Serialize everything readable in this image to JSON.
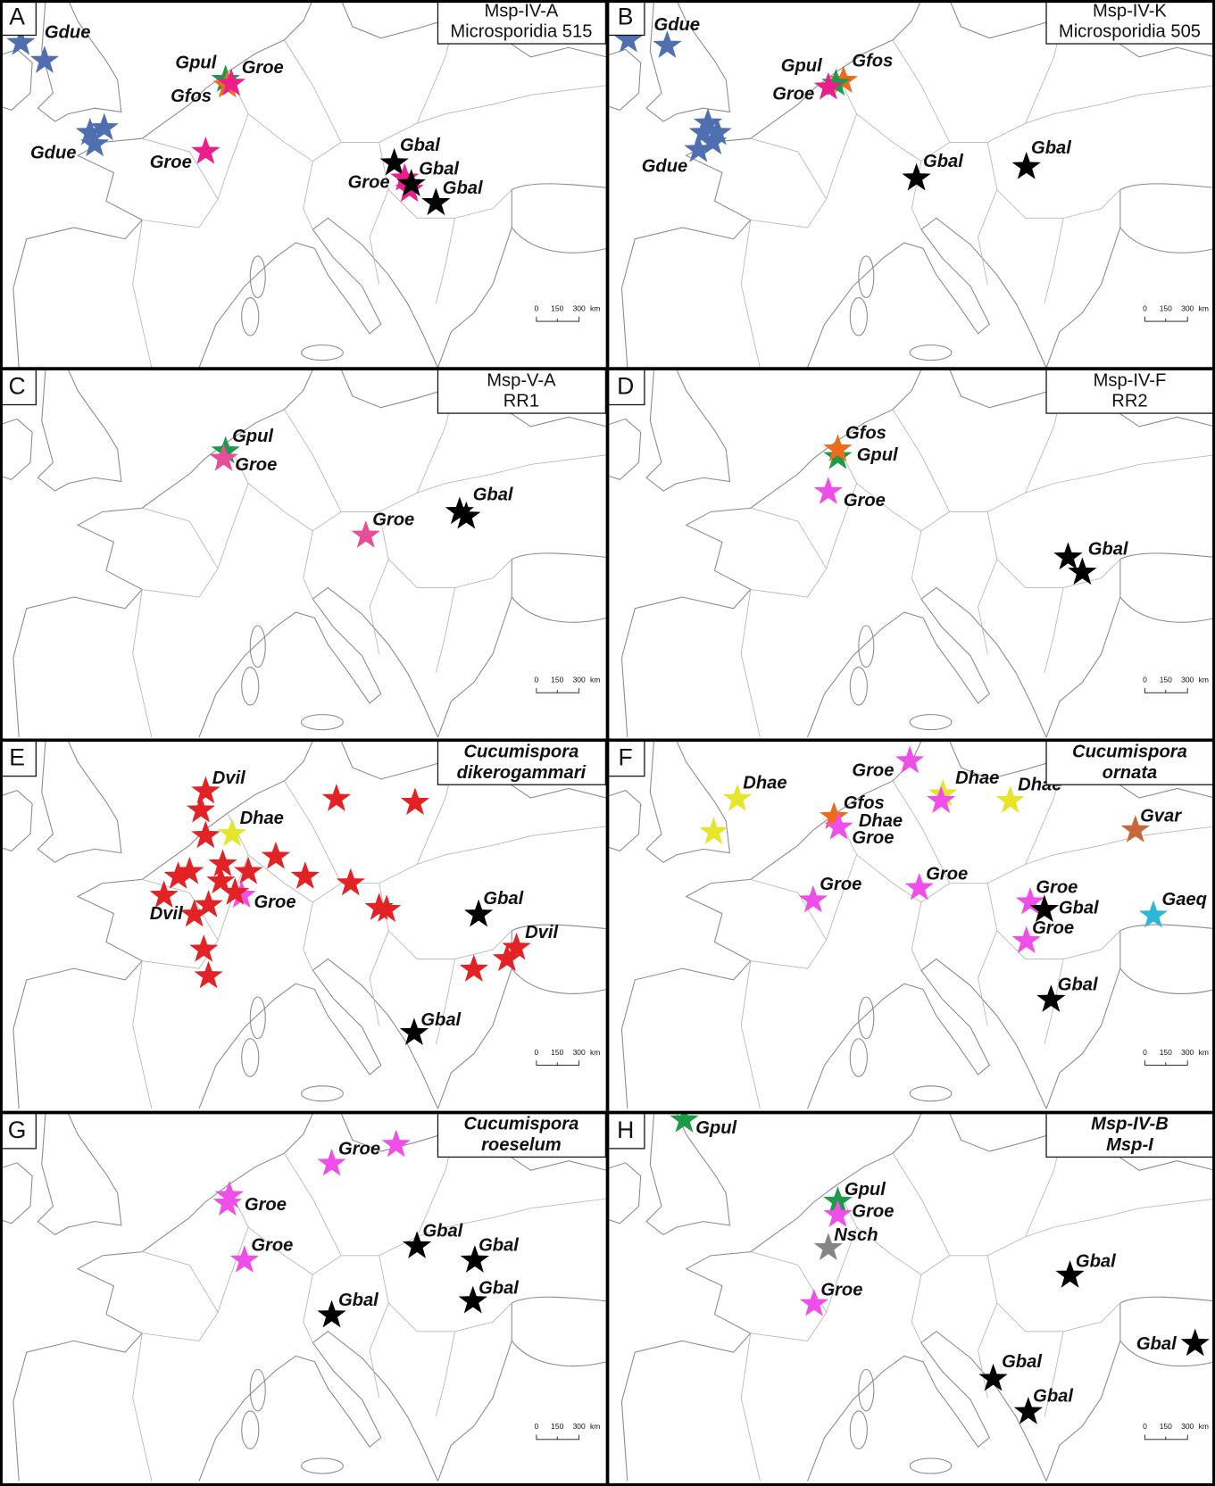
{
  "panels": [
    {
      "letter": "A",
      "title": [
        "Msp-IV-A",
        "Microsporidia 515"
      ],
      "labels": [
        "Gdue",
        "Gpul",
        "Groe",
        "Gfos",
        "Gdue",
        "Groe",
        "Gbal",
        "Gbal",
        "Groe",
        "Gbal"
      ]
    },
    {
      "letter": "B",
      "title": [
        "Msp-IV-K",
        "Microsporidia 505"
      ],
      "labels": [
        "Gdue",
        "Gpul",
        "Gfos",
        "Groe",
        "Gdue",
        "Gbal",
        "Gbal"
      ]
    },
    {
      "letter": "C",
      "title": [
        "Msp-V-A",
        "RR1"
      ],
      "labels": [
        "Gpul",
        "Groe",
        "Groe",
        "Gbal"
      ]
    },
    {
      "letter": "D",
      "title": [
        "Msp-IV-F",
        "RR2"
      ],
      "labels": [
        "Gfos",
        "Gpul",
        "Groe",
        "Gbal"
      ]
    },
    {
      "letter": "E",
      "title": [
        "Cucumispora",
        "dikerogammari"
      ],
      "labels": [
        "Dvil",
        "Dhae",
        "Groe",
        "Dvil",
        "Gbal",
        "Dvil",
        "Gbal"
      ]
    },
    {
      "letter": "F",
      "title": [
        "Cucumispora",
        "ornata"
      ],
      "labels": [
        "Groe",
        "Dhae",
        "Dhae",
        "Dhae",
        "Gfos",
        "Dhae",
        "Groe",
        "Gvar",
        "Groe",
        "Groe",
        "Groe",
        "Gbal",
        "Gaeq",
        "Groe",
        "Gbal"
      ]
    },
    {
      "letter": "G",
      "title": [
        "Cucumispora",
        "roeselum"
      ],
      "labels": [
        "Groe",
        "Groe",
        "Groe",
        "Gbal",
        "Gbal",
        "Gbal",
        "Gbal"
      ]
    },
    {
      "letter": "H",
      "title": [
        "Msp-IV-B",
        "Msp-I"
      ],
      "labels": [
        "Gpul",
        "Gpul",
        "Groe",
        "Nsch",
        "Groe",
        "Gbal",
        "Gbal",
        "Gbal",
        "Gbal"
      ]
    }
  ],
  "scale_bar": [
    "0",
    "150",
    "300",
    "km"
  ]
}
